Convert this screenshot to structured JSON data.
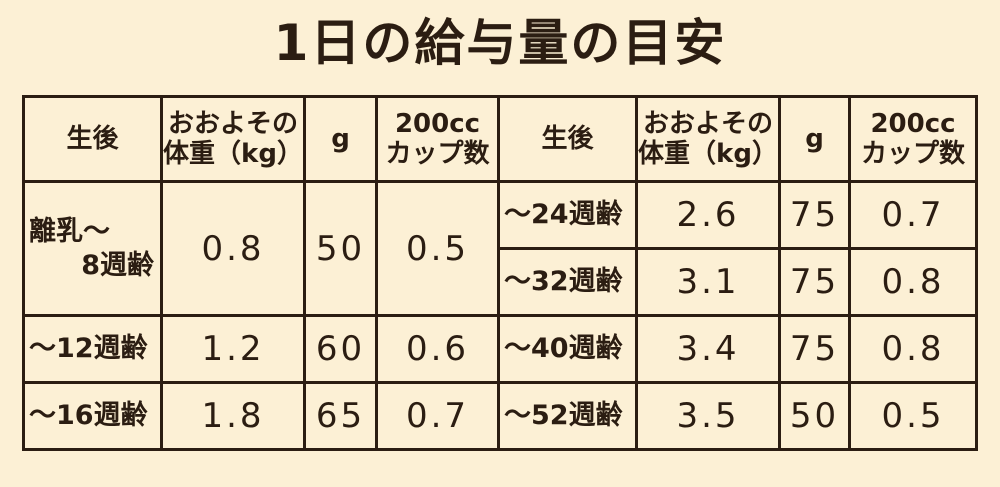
{
  "title": "1日の給与量の目安",
  "table": {
    "header": [
      [
        "生後"
      ],
      [
        "おおよその",
        "体重（kg）"
      ],
      [
        "g"
      ],
      [
        "200cc",
        "カップ数"
      ],
      [
        "生後"
      ],
      [
        "おおよその",
        "体重（kg）"
      ],
      [
        "g"
      ],
      [
        "200cc",
        "カップ数"
      ]
    ],
    "left": [
      {
        "age": [
          "離乳〜",
          "8週齢"
        ],
        "weight": 0.8,
        "g": 50,
        "cups": 0.5
      },
      {
        "age": [
          "〜12週齢"
        ],
        "weight": 1.2,
        "g": 60,
        "cups": 0.6
      },
      {
        "age": [
          "〜16週齢"
        ],
        "weight": 1.8,
        "g": 65,
        "cups": 0.7
      }
    ],
    "right": [
      {
        "age": [
          "〜24週齢"
        ],
        "weight": 2.6,
        "g": 75,
        "cups": 0.7
      },
      {
        "age": [
          "〜32週齢"
        ],
        "weight": 3.1,
        "g": 75,
        "cups": 0.8
      },
      {
        "age": [
          "〜40週齢"
        ],
        "weight": 3.4,
        "g": 75,
        "cups": 0.8
      },
      {
        "age": [
          "〜52週齢"
        ],
        "weight": 3.5,
        "g": 50,
        "cups": 0.5
      }
    ]
  }
}
